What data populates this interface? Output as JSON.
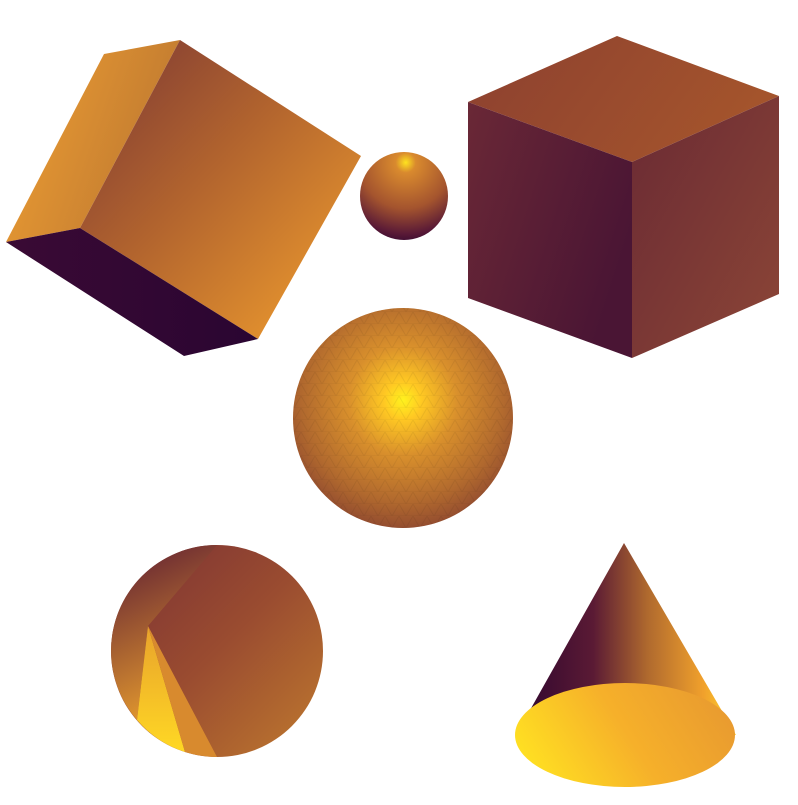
{
  "scene": {
    "background": "#ffffff",
    "palette": {
      "highlight": "#ffe21f",
      "bright": "#f0a030",
      "mid": "#b86a2c",
      "dark": "#6a2a32",
      "shadow": "#2e0630"
    },
    "objects": [
      {
        "kind": "cube",
        "label": "tilted-cube"
      },
      {
        "kind": "sphere",
        "label": "small-sphere"
      },
      {
        "kind": "cube",
        "label": "upright-cube"
      },
      {
        "kind": "sphere",
        "label": "large-faceted-sphere"
      },
      {
        "kind": "cone",
        "label": "cone-top-view"
      },
      {
        "kind": "cone",
        "label": "cone-side-view"
      }
    ]
  }
}
